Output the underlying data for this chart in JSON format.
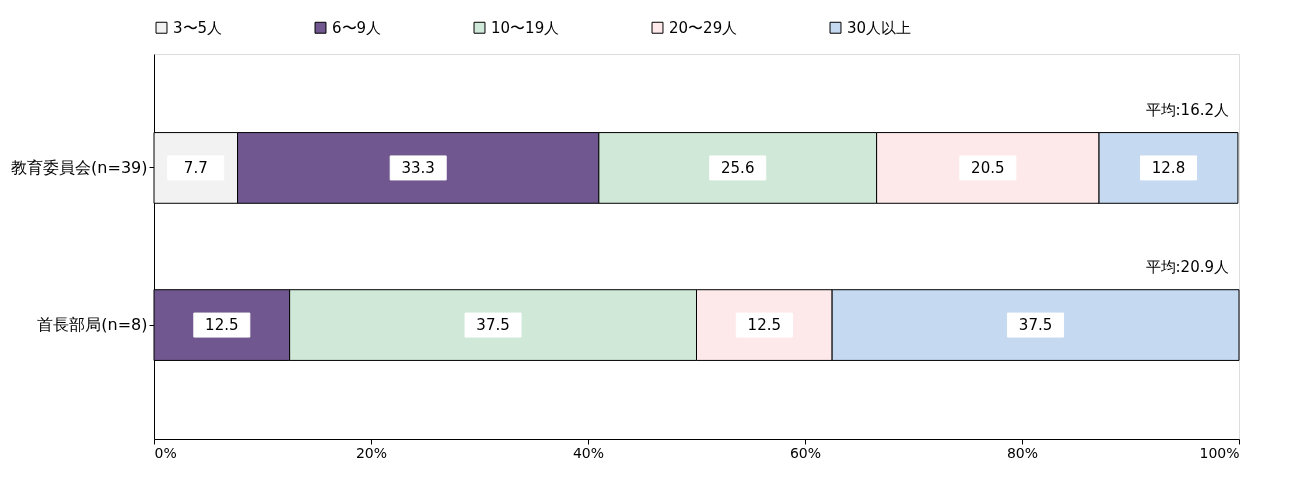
{
  "chart_data": {
    "type": "bar",
    "orientation": "horizontal",
    "stacked": true,
    "categories": [
      "教育委員会(n=39)",
      "首長部局(n=8)"
    ],
    "series": [
      {
        "name": "3〜5人",
        "color": "#f2f2f2",
        "values": [
          7.7,
          null
        ]
      },
      {
        "name": "6〜9人",
        "color": "#70578f",
        "values": [
          33.3,
          12.5
        ]
      },
      {
        "name": "10〜19人",
        "color": "#cfe8d8",
        "values": [
          25.6,
          37.5
        ]
      },
      {
        "name": "20〜29人",
        "color": "#fde9e9",
        "values": [
          20.5,
          12.5
        ]
      },
      {
        "name": "30人以上",
        "color": "#c5d9f1",
        "values": [
          12.8,
          37.5
        ]
      }
    ],
    "xlim": [
      0,
      100
    ],
    "xticks": [
      {
        "value": 0,
        "label": "0%"
      },
      {
        "value": 20,
        "label": "20%"
      },
      {
        "value": 40,
        "label": "40%"
      },
      {
        "value": 60,
        "label": "60%"
      },
      {
        "value": 80,
        "label": "80%"
      },
      {
        "value": 100,
        "label": "100%"
      }
    ],
    "data_labels": true,
    "legend": "top",
    "grid": false,
    "annotations": [
      "平均:16.2人",
      "平均:20.9人"
    ]
  }
}
